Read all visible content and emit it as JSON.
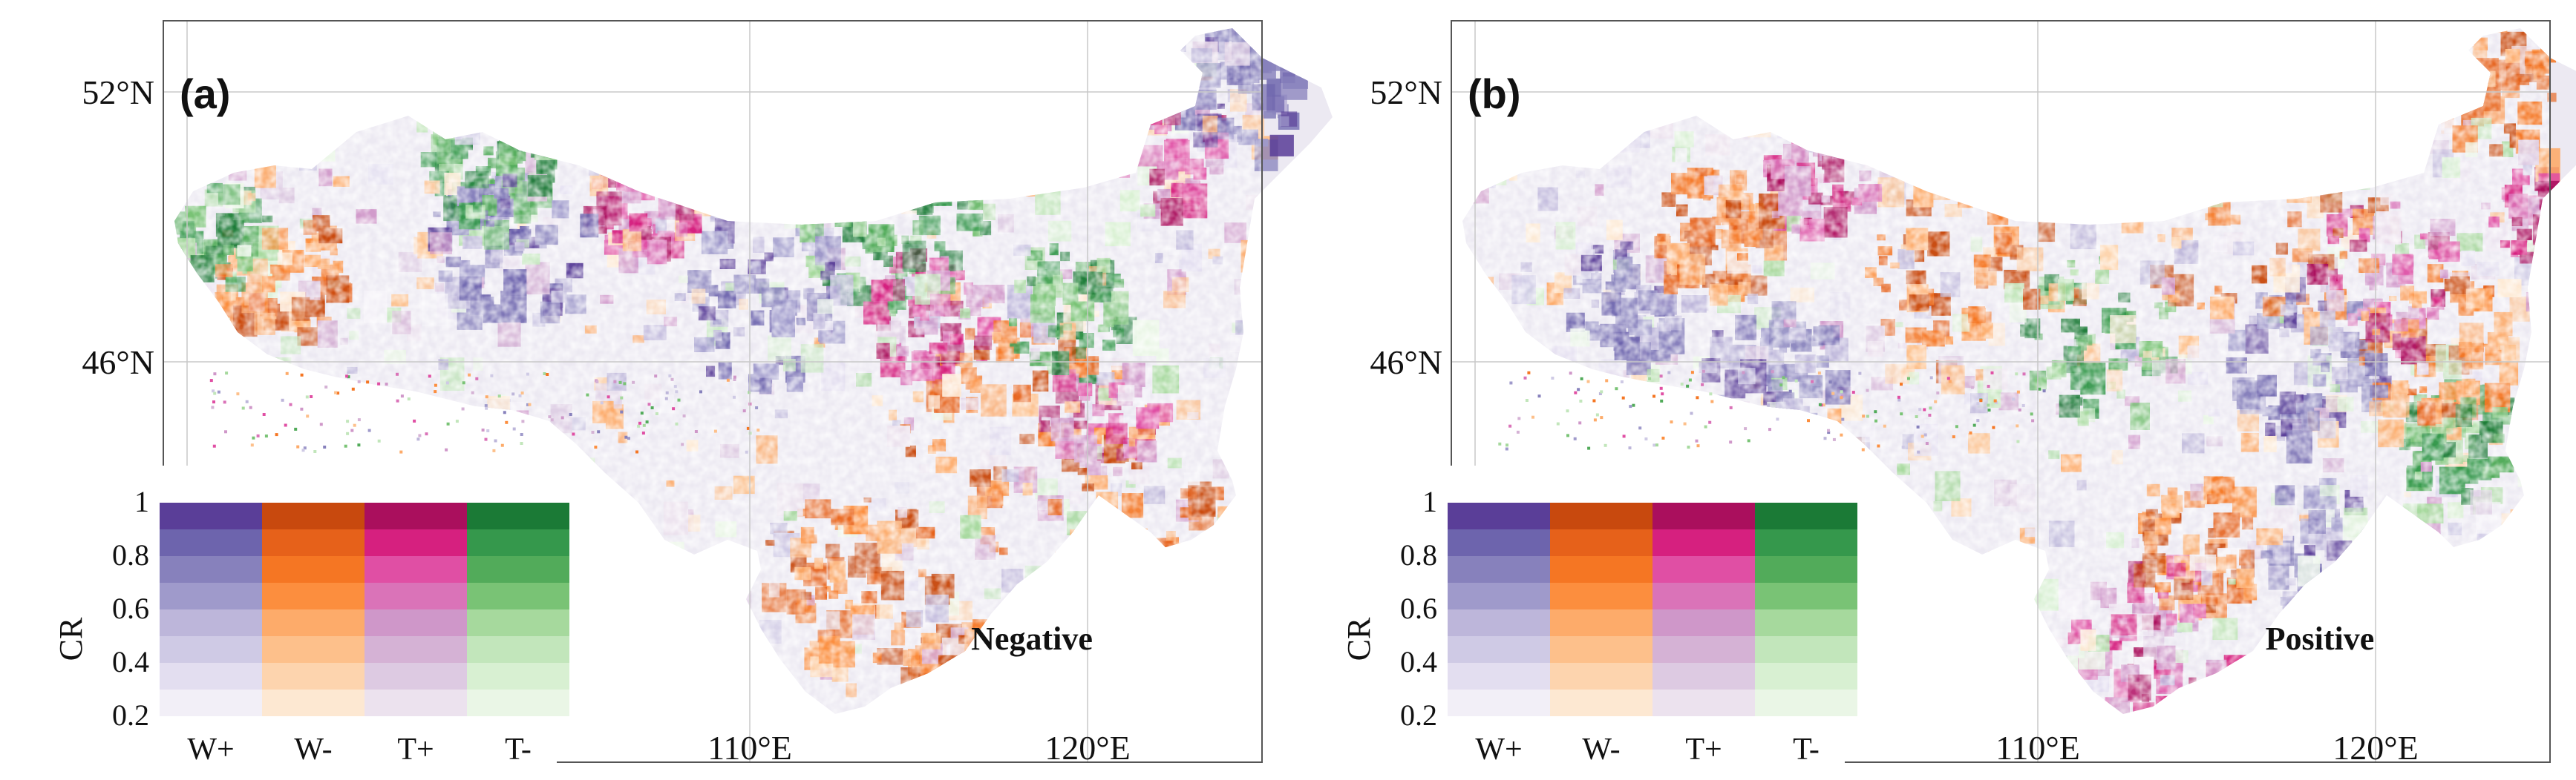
{
  "colors": {
    "W+": [
      "#f2eff7",
      "#e3def0",
      "#cfcae5",
      "#bdb6da",
      "#9f9acb",
      "#8781bc",
      "#6d64ad",
      "#5a3e98"
    ],
    "W-": [
      "#fde8d2",
      "#fdd4ae",
      "#fdc08b",
      "#fdab6a",
      "#fc8e3e",
      "#f57623",
      "#e6611a",
      "#c8490e"
    ],
    "T+": [
      "#ece2ee",
      "#ddcae2",
      "#d5b2d5",
      "#cf97c9",
      "#da73b8",
      "#e04fa4",
      "#d6207f",
      "#aa0f5d"
    ],
    "T-": [
      "#eaf6e6",
      "#d8f0d2",
      "#c2e6bb",
      "#a6d99d",
      "#79c375",
      "#52ab5a",
      "#35984c",
      "#1b7a36"
    ]
  },
  "panels": [
    {
      "id": "a",
      "label": "(a)",
      "title": "Negative",
      "lat_labels": [
        "52°N",
        "46°N"
      ],
      "lon_labels": [
        "110°E",
        "120°E"
      ],
      "legend": {
        "axis_label": "CR",
        "ticks": [
          "1",
          "0.8",
          "0.6",
          "0.4",
          "0.2"
        ],
        "columns": [
          "W+",
          "W-",
          "T+",
          "T-"
        ]
      }
    },
    {
      "id": "b",
      "label": "(b)",
      "title": "Positive",
      "lat_labels": [
        "52°N",
        "46°N"
      ],
      "lon_labels": [
        "110°E",
        "120°E"
      ],
      "legend": {
        "axis_label": "CR",
        "ticks": [
          "1",
          "0.8",
          "0.6",
          "0.4",
          "0.2"
        ],
        "columns": [
          "W+",
          "W-",
          "T+",
          "T-"
        ]
      }
    }
  ]
}
